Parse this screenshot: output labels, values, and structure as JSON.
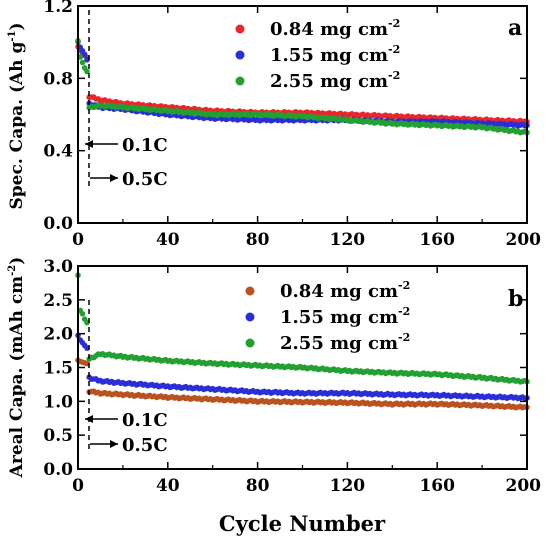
{
  "chart_data": [
    {
      "type": "scatter",
      "panel_label": "a",
      "ylabel": "Spec. Capa. (Ah g",
      "ylabel_sup": "-1",
      "ylabel_close": ")",
      "xlim": [
        0,
        200
      ],
      "ylim": [
        0.0,
        1.2
      ],
      "x_ticks": [
        "0",
        "40",
        "80",
        "120",
        "160",
        "200"
      ],
      "y_ticks": [
        "0.0",
        "0.4",
        "0.8",
        "1.2"
      ],
      "annotations": [
        "0.1C",
        "0.5C"
      ],
      "legend_placement": "top-right",
      "series": [
        {
          "name": "0.84 mg cm",
          "sup": "-2",
          "color": "#e8262b",
          "points": [
            [
              0,
              0.98
            ],
            [
              1,
              0.96
            ],
            [
              2,
              0.94
            ],
            [
              3,
              0.93
            ],
            [
              4,
              0.92
            ],
            [
              5,
              0.7
            ],
            [
              10,
              0.68
            ],
            [
              20,
              0.66
            ],
            [
              40,
              0.64
            ],
            [
              60,
              0.62
            ],
            [
              80,
              0.61
            ],
            [
              100,
              0.61
            ],
            [
              120,
              0.6
            ],
            [
              140,
              0.59
            ],
            [
              160,
              0.58
            ],
            [
              180,
              0.57
            ],
            [
              200,
              0.56
            ]
          ]
        },
        {
          "name": "1.55 mg cm",
          "sup": "-2",
          "color": "#2a2ed8",
          "points": [
            [
              0,
              1.0
            ],
            [
              1,
              0.97
            ],
            [
              2,
              0.95
            ],
            [
              3,
              0.93
            ],
            [
              4,
              0.9
            ],
            [
              5,
              0.66
            ],
            [
              10,
              0.64
            ],
            [
              20,
              0.63
            ],
            [
              40,
              0.6
            ],
            [
              60,
              0.58
            ],
            [
              80,
              0.57
            ],
            [
              100,
              0.57
            ],
            [
              120,
              0.57
            ],
            [
              140,
              0.56
            ],
            [
              160,
              0.56
            ],
            [
              180,
              0.55
            ],
            [
              200,
              0.54
            ]
          ]
        },
        {
          "name": "2.55 mg cm",
          "sup": "-2",
          "color": "#22a032",
          "points": [
            [
              0,
              1.01
            ],
            [
              1,
              0.92
            ],
            [
              2,
              0.89
            ],
            [
              3,
              0.86
            ],
            [
              4,
              0.84
            ],
            [
              5,
              0.64
            ],
            [
              10,
              0.65
            ],
            [
              20,
              0.64
            ],
            [
              40,
              0.62
            ],
            [
              60,
              0.6
            ],
            [
              80,
              0.6
            ],
            [
              100,
              0.59
            ],
            [
              120,
              0.57
            ],
            [
              140,
              0.55
            ],
            [
              160,
              0.54
            ],
            [
              180,
              0.53
            ],
            [
              200,
              0.5
            ]
          ]
        }
      ]
    },
    {
      "type": "scatter",
      "panel_label": "b",
      "ylabel": "Areal Capa. (mAh cm",
      "ylabel_sup": "-2",
      "ylabel_close": ")",
      "xlabel": "Cycle Number",
      "xlim": [
        0,
        200
      ],
      "ylim": [
        0.0,
        3.0
      ],
      "x_ticks": [
        "0",
        "40",
        "80",
        "120",
        "160",
        "200"
      ],
      "y_ticks": [
        "0.0",
        "0.5",
        "1.0",
        "1.5",
        "2.0",
        "2.5",
        "3.0"
      ],
      "annotations": [
        "0.1C",
        "0.5C"
      ],
      "legend_placement": "top-right",
      "series": [
        {
          "name": "0.84 mg cm",
          "sup": "-2",
          "color": "#b8521e",
          "points": [
            [
              0,
              1.62
            ],
            [
              1,
              1.6
            ],
            [
              2,
              1.59
            ],
            [
              3,
              1.58
            ],
            [
              4,
              1.57
            ],
            [
              5,
              1.15
            ],
            [
              10,
              1.12
            ],
            [
              20,
              1.1
            ],
            [
              40,
              1.06
            ],
            [
              60,
              1.03
            ],
            [
              80,
              1.0
            ],
            [
              100,
              0.99
            ],
            [
              120,
              0.98
            ],
            [
              140,
              0.96
            ],
            [
              160,
              0.96
            ],
            [
              180,
              0.94
            ],
            [
              200,
              0.91
            ]
          ]
        },
        {
          "name": "1.55 mg cm",
          "sup": "-2",
          "color": "#2a2ed8",
          "points": [
            [
              0,
              1.97
            ],
            [
              1,
              1.9
            ],
            [
              2,
              1.86
            ],
            [
              3,
              1.82
            ],
            [
              4,
              1.78
            ],
            [
              5,
              1.35
            ],
            [
              10,
              1.3
            ],
            [
              20,
              1.27
            ],
            [
              40,
              1.22
            ],
            [
              60,
              1.18
            ],
            [
              80,
              1.14
            ],
            [
              100,
              1.12
            ],
            [
              120,
              1.12
            ],
            [
              140,
              1.1
            ],
            [
              160,
              1.09
            ],
            [
              180,
              1.07
            ],
            [
              200,
              1.05
            ]
          ]
        },
        {
          "name": "2.55 mg cm",
          "sup": "-2",
          "color": "#22a032",
          "points": [
            [
              0,
              2.87
            ],
            [
              1,
              2.35
            ],
            [
              2,
              2.3
            ],
            [
              3,
              2.22
            ],
            [
              4,
              2.17
            ],
            [
              5,
              1.63
            ],
            [
              10,
              1.7
            ],
            [
              20,
              1.66
            ],
            [
              40,
              1.6
            ],
            [
              60,
              1.56
            ],
            [
              80,
              1.53
            ],
            [
              100,
              1.5
            ],
            [
              120,
              1.45
            ],
            [
              140,
              1.42
            ],
            [
              160,
              1.4
            ],
            [
              180,
              1.35
            ],
            [
              200,
              1.29
            ]
          ]
        }
      ]
    }
  ]
}
